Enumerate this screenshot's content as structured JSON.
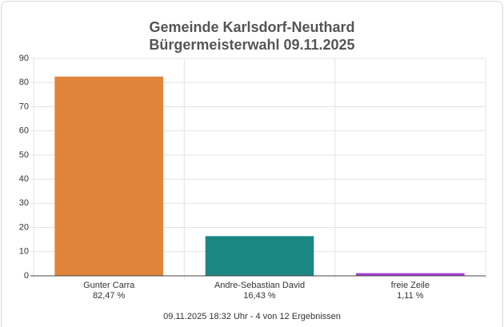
{
  "chart_data": {
    "type": "bar",
    "title": "Gemeinde Karlsdorf-Neuthard",
    "subtitle": "Bürgermeisterwahl 09.11.2025",
    "categories": [
      "Gunter Carra",
      "Andre-Sebastian David",
      "freie Zeile"
    ],
    "values": [
      82.47,
      16.43,
      1.11
    ],
    "value_labels": [
      "82,47 %",
      "16,43 %",
      "1,11 %"
    ],
    "colors": [
      "#e0843b",
      "#1a8783",
      "#a53fd3"
    ],
    "ylim": [
      0,
      90
    ],
    "yticks": [
      0,
      10,
      20,
      30,
      40,
      50,
      60,
      70,
      80,
      90
    ],
    "grid": true,
    "footnote": "09.11.2025 18:32 Uhr - 4 von 12 Ergebnissen"
  }
}
